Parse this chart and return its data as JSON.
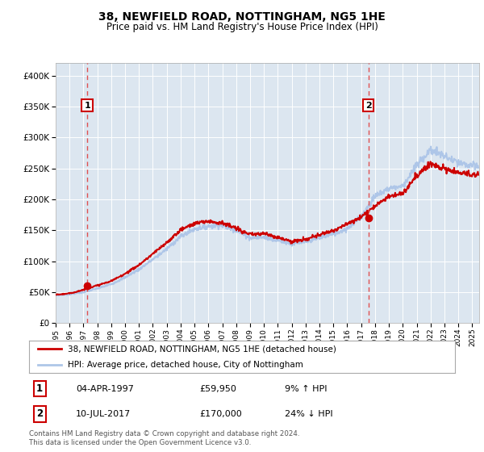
{
  "title": "38, NEWFIELD ROAD, NOTTINGHAM, NG5 1HE",
  "subtitle": "Price paid vs. HM Land Registry's House Price Index (HPI)",
  "fig_bg_color": "#ffffff",
  "plot_bg_color": "#dce6f0",
  "hpi_color": "#aec6e8",
  "price_color": "#cc0000",
  "vline_color": "#e05050",
  "marker_color": "#cc0000",
  "ylim": [
    0,
    420000
  ],
  "yticks": [
    0,
    50000,
    100000,
    150000,
    200000,
    250000,
    300000,
    350000,
    400000
  ],
  "ytick_labels": [
    "£0",
    "£50K",
    "£100K",
    "£150K",
    "£200K",
    "£250K",
    "£300K",
    "£350K",
    "£400K"
  ],
  "xmin": 1995,
  "xmax": 2025.5,
  "sale1_x": 1997.27,
  "sale1_y": 59950,
  "sale1_label": "1",
  "sale1_date": "04-APR-1997",
  "sale1_price": "£59,950",
  "sale1_hpi": "9% ↑ HPI",
  "sale2_x": 2017.52,
  "sale2_y": 170000,
  "sale2_label": "2",
  "sale2_date": "10-JUL-2017",
  "sale2_price": "£170,000",
  "sale2_hpi": "24% ↓ HPI",
  "legend_line1": "38, NEWFIELD ROAD, NOTTINGHAM, NG5 1HE (detached house)",
  "legend_line2": "HPI: Average price, detached house, City of Nottingham",
  "footer": "Contains HM Land Registry data © Crown copyright and database right 2024.\nThis data is licensed under the Open Government Licence v3.0.",
  "hpi_years": [
    1995,
    1996,
    1997,
    1998,
    1999,
    2000,
    2001,
    2002,
    2003,
    2004,
    2005,
    2006,
    2007,
    2008,
    2009,
    2010,
    2011,
    2012,
    2013,
    2014,
    2015,
    2016,
    2017,
    2018,
    2019,
    2020,
    2021,
    2022,
    2023,
    2024,
    2025.3
  ],
  "hpi_values": [
    45000,
    47000,
    50000,
    56000,
    63000,
    74000,
    87000,
    103000,
    120000,
    140000,
    152000,
    157000,
    158000,
    150000,
    138000,
    139000,
    134000,
    128000,
    131000,
    138000,
    144000,
    153000,
    172000,
    205000,
    218000,
    222000,
    255000,
    280000,
    270000,
    258000,
    253000
  ],
  "price_years": [
    1995,
    1996,
    1997,
    1998,
    1999,
    2000,
    2001,
    2002,
    2003,
    2004,
    2005,
    2006,
    2007,
    2008,
    2009,
    2010,
    2011,
    2012,
    2013,
    2014,
    2015,
    2016,
    2017,
    2018,
    2019,
    2020,
    2021,
    2022,
    2023,
    2024,
    2025.3
  ],
  "price_values": [
    46000,
    48000,
    54000,
    61000,
    68000,
    80000,
    94000,
    112000,
    130000,
    151000,
    161000,
    165000,
    162000,
    153000,
    143000,
    145000,
    139000,
    132000,
    135000,
    143000,
    150000,
    160000,
    172000,
    190000,
    205000,
    210000,
    238000,
    258000,
    250000,
    243000,
    240000
  ]
}
